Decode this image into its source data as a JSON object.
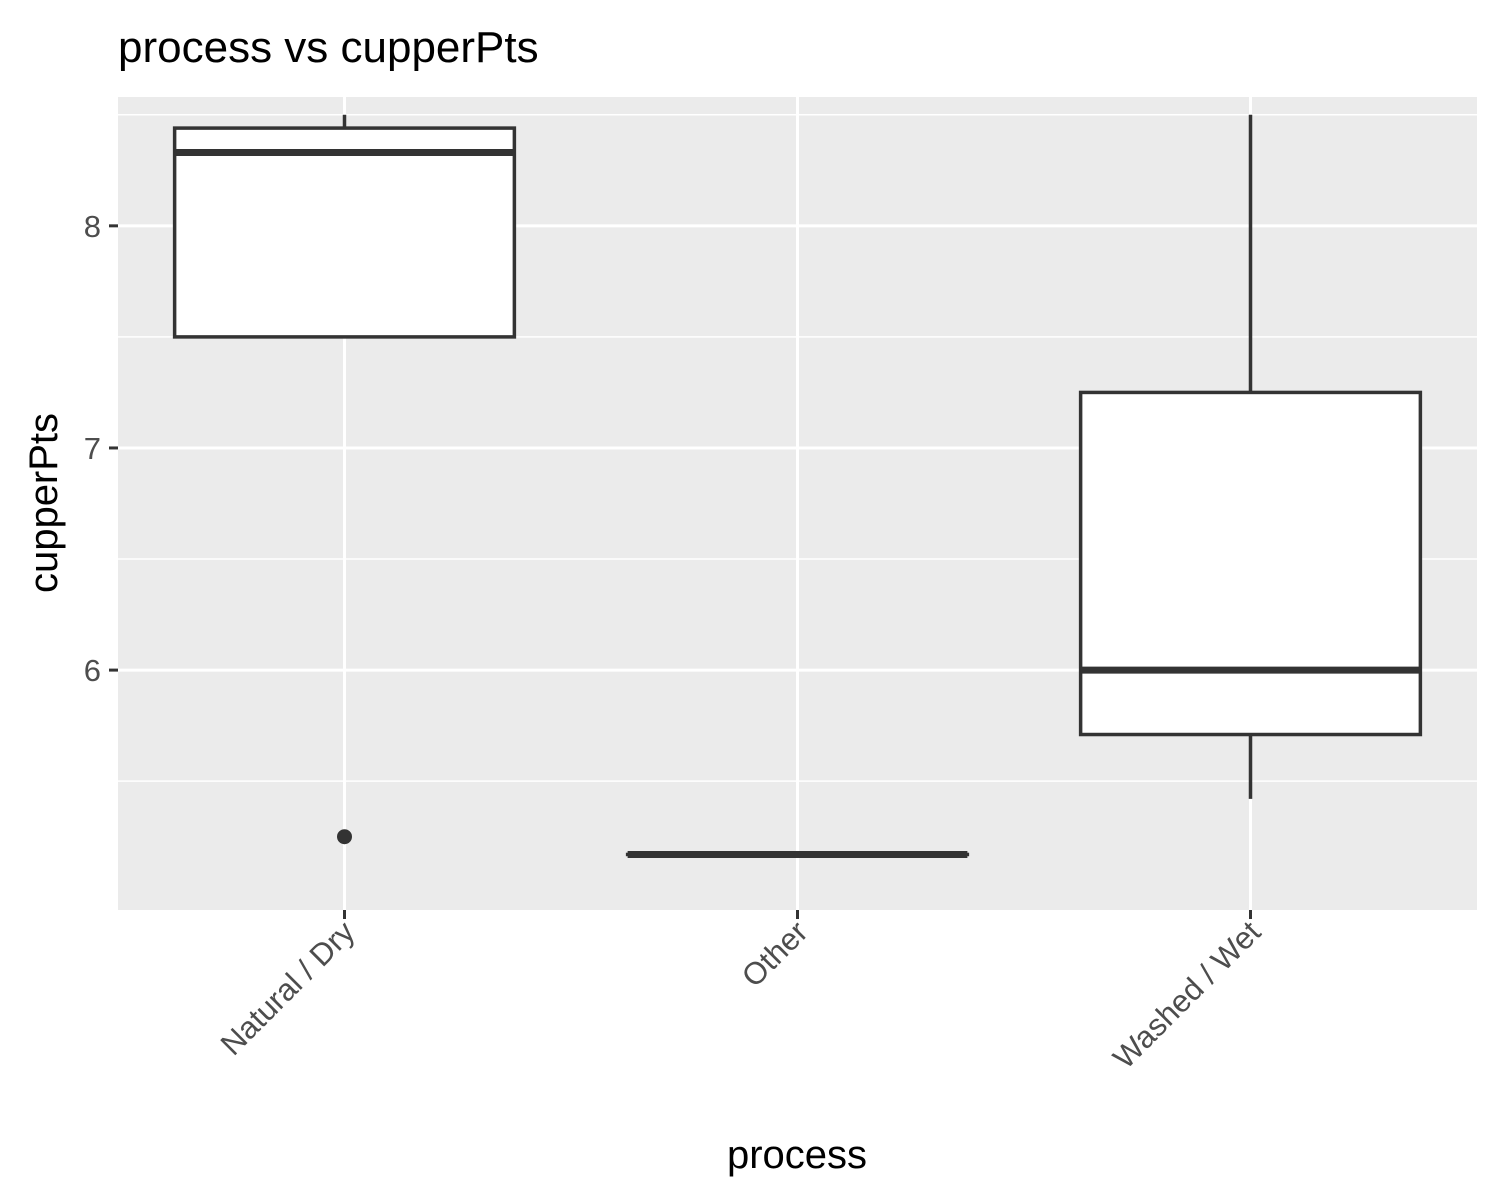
{
  "chart_data": {
    "type": "boxplot",
    "title": "process vs cupperPts",
    "xlabel": "process",
    "ylabel": "cupperPts",
    "categories": [
      "Natural / Dry",
      "Other",
      "Washed / Wet"
    ],
    "ylim": [
      4.92,
      8.58
    ],
    "yticks": [
      6,
      7,
      8
    ],
    "grid": true,
    "boxes": [
      {
        "category": "Natural / Dry",
        "whisker_low": 7.5,
        "q1": 7.5,
        "median": 8.33,
        "q3": 8.44,
        "whisker_high": 8.5,
        "outliers": [
          5.25
        ]
      },
      {
        "category": "Other",
        "whisker_low": 5.17,
        "q1": 5.17,
        "median": 5.17,
        "q3": 5.17,
        "whisker_high": 5.17,
        "outliers": []
      },
      {
        "category": "Washed / Wet",
        "whisker_low": 5.42,
        "q1": 5.71,
        "median": 6.0,
        "q3": 7.25,
        "whisker_high": 8.5,
        "outliers": []
      }
    ],
    "colors": {
      "panel": "#ebebeb",
      "grid": "#ffffff",
      "box_fill": "#ffffff",
      "box_line": "#333333",
      "tick_text": "#4d4d4d"
    }
  }
}
